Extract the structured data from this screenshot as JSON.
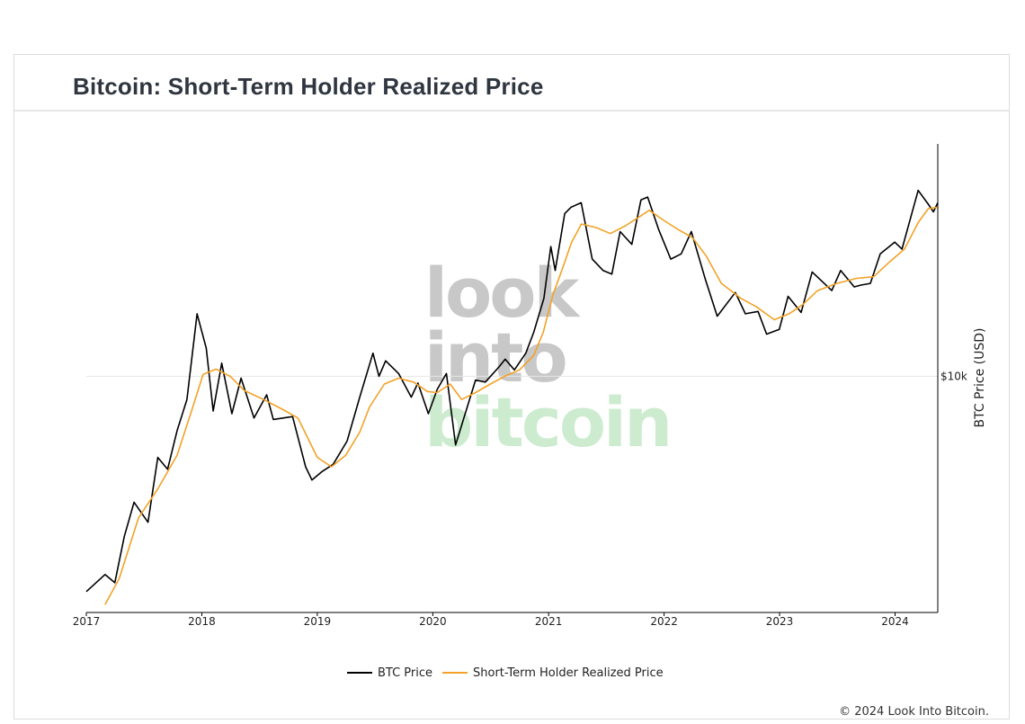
{
  "page": {
    "title": "Bitcoin: Short-Term Holder Realized Price",
    "copyright": "© 2024 Look Into Bitcoin."
  },
  "watermark": {
    "line1": "look",
    "line2": "into",
    "line3": "bitcoin",
    "gray": "#c8c8c8",
    "green": "#cdeccf"
  },
  "colors": {
    "btc": "#000000",
    "sth": "#f2a227",
    "grid": "#e6e6e6",
    "axis": "#000000"
  },
  "chart_data": {
    "type": "line",
    "title": "Bitcoin: Short-Term Holder Realized Price",
    "xlabel": "",
    "ylabel": "BTC Price (USD)",
    "y_scale": "log",
    "y_axis_side": "right",
    "y_ticks": [
      {
        "value": 10000,
        "label": "$10k"
      }
    ],
    "x_ticks": [
      "2017",
      "2018",
      "2019",
      "2020",
      "2021",
      "2022",
      "2023",
      "2024"
    ],
    "x_range": [
      "2017-01-01",
      "2024-05-15"
    ],
    "grid": "horizontal at $10k",
    "legend_position": "bottom-center",
    "series": [
      {
        "name": "BTC Price",
        "color": "#000000",
        "points": [
          [
            "2017-01-01",
            1000
          ],
          [
            "2017-03-01",
            1200
          ],
          [
            "2017-04-01",
            1100
          ],
          [
            "2017-05-01",
            1800
          ],
          [
            "2017-06-01",
            2600
          ],
          [
            "2017-07-15",
            2100
          ],
          [
            "2017-08-15",
            4200
          ],
          [
            "2017-09-15",
            3700
          ],
          [
            "2017-10-15",
            5600
          ],
          [
            "2017-11-15",
            7800
          ],
          [
            "2017-12-17",
            19500
          ],
          [
            "2018-01-15",
            13500
          ],
          [
            "2018-02-06",
            6900
          ],
          [
            "2018-03-05",
            11500
          ],
          [
            "2018-04-06",
            6700
          ],
          [
            "2018-05-05",
            9800
          ],
          [
            "2018-06-15",
            6400
          ],
          [
            "2018-07-25",
            8200
          ],
          [
            "2018-08-15",
            6300
          ],
          [
            "2018-10-15",
            6500
          ],
          [
            "2018-11-25",
            3800
          ],
          [
            "2018-12-15",
            3300
          ],
          [
            "2019-01-15",
            3600
          ],
          [
            "2019-02-20",
            3900
          ],
          [
            "2019-04-05",
            5000
          ],
          [
            "2019-05-15",
            8000
          ],
          [
            "2019-06-26",
            12800
          ],
          [
            "2019-07-15",
            10000
          ],
          [
            "2019-08-05",
            11800
          ],
          [
            "2019-09-15",
            10300
          ],
          [
            "2019-10-25",
            8000
          ],
          [
            "2019-11-15",
            9300
          ],
          [
            "2019-12-18",
            6700
          ],
          [
            "2020-01-15",
            8700
          ],
          [
            "2020-02-13",
            10300
          ],
          [
            "2020-03-13",
            4800
          ],
          [
            "2020-04-15",
            6900
          ],
          [
            "2020-05-15",
            9600
          ],
          [
            "2020-06-15",
            9400
          ],
          [
            "2020-07-27",
            11000
          ],
          [
            "2020-08-17",
            12000
          ],
          [
            "2020-09-15",
            10700
          ],
          [
            "2020-10-21",
            12800
          ],
          [
            "2020-11-15",
            16000
          ],
          [
            "2020-12-17",
            23000
          ],
          [
            "2021-01-08",
            40000
          ],
          [
            "2021-01-22",
            31000
          ],
          [
            "2021-02-21",
            57000
          ],
          [
            "2021-03-13",
            61000
          ],
          [
            "2021-04-14",
            64000
          ],
          [
            "2021-05-19",
            35000
          ],
          [
            "2021-06-22",
            31000
          ],
          [
            "2021-07-20",
            29800
          ],
          [
            "2021-08-15",
            47000
          ],
          [
            "2021-09-21",
            41000
          ],
          [
            "2021-10-20",
            66000
          ],
          [
            "2021-11-10",
            68000
          ],
          [
            "2021-12-15",
            48000
          ],
          [
            "2022-01-22",
            35000
          ],
          [
            "2022-02-24",
            37000
          ],
          [
            "2022-03-28",
            47000
          ],
          [
            "2022-05-12",
            28000
          ],
          [
            "2022-06-18",
            19000
          ],
          [
            "2022-08-14",
            24500
          ],
          [
            "2022-09-15",
            19500
          ],
          [
            "2022-10-25",
            20000
          ],
          [
            "2022-11-21",
            15700
          ],
          [
            "2022-12-31",
            16500
          ],
          [
            "2023-01-28",
            23500
          ],
          [
            "2023-03-10",
            19800
          ],
          [
            "2023-04-14",
            30500
          ],
          [
            "2023-06-15",
            25000
          ],
          [
            "2023-07-13",
            31000
          ],
          [
            "2023-08-25",
            26000
          ],
          [
            "2023-09-15",
            26500
          ],
          [
            "2023-10-15",
            27000
          ],
          [
            "2023-11-15",
            37000
          ],
          [
            "2023-12-31",
            42000
          ],
          [
            "2024-01-23",
            39000
          ],
          [
            "2024-03-14",
            73000
          ],
          [
            "2024-04-15",
            63000
          ],
          [
            "2024-05-01",
            58000
          ],
          [
            "2024-05-15",
            64000
          ]
        ]
      },
      {
        "name": "Short-Term Holder Realized Price",
        "color": "#f2a227",
        "points": [
          [
            "2017-03-01",
            870
          ],
          [
            "2017-04-15",
            1150
          ],
          [
            "2017-06-15",
            2200
          ],
          [
            "2017-08-15",
            3000
          ],
          [
            "2017-10-15",
            4300
          ],
          [
            "2017-12-01",
            7000
          ],
          [
            "2018-01-05",
            10200
          ],
          [
            "2018-02-15",
            10800
          ],
          [
            "2018-04-01",
            10000
          ],
          [
            "2018-05-15",
            8600
          ],
          [
            "2018-07-15",
            7800
          ],
          [
            "2018-09-15",
            7000
          ],
          [
            "2018-11-01",
            6400
          ],
          [
            "2018-12-01",
            5200
          ],
          [
            "2019-01-01",
            4200
          ],
          [
            "2019-02-15",
            3800
          ],
          [
            "2019-04-01",
            4300
          ],
          [
            "2019-05-15",
            5500
          ],
          [
            "2019-06-15",
            7200
          ],
          [
            "2019-08-01",
            9200
          ],
          [
            "2019-09-15",
            9800
          ],
          [
            "2019-11-01",
            9400
          ],
          [
            "2019-12-15",
            8500
          ],
          [
            "2020-01-15",
            8400
          ],
          [
            "2020-02-25",
            9200
          ],
          [
            "2020-04-01",
            7800
          ],
          [
            "2020-05-15",
            8400
          ],
          [
            "2020-07-01",
            9200
          ],
          [
            "2020-08-15",
            10000
          ],
          [
            "2020-10-01",
            10700
          ],
          [
            "2020-11-15",
            12500
          ],
          [
            "2020-12-15",
            16000
          ],
          [
            "2021-01-15",
            24000
          ],
          [
            "2021-02-15",
            32000
          ],
          [
            "2021-03-15",
            42000
          ],
          [
            "2021-04-15",
            51000
          ],
          [
            "2021-06-01",
            49000
          ],
          [
            "2021-07-15",
            46000
          ],
          [
            "2021-09-01",
            50000
          ],
          [
            "2021-10-15",
            55000
          ],
          [
            "2021-11-15",
            59000
          ],
          [
            "2021-12-31",
            53000
          ],
          [
            "2022-02-15",
            48000
          ],
          [
            "2022-04-01",
            44000
          ],
          [
            "2022-05-15",
            36000
          ],
          [
            "2022-07-01",
            27000
          ],
          [
            "2022-09-01",
            23000
          ],
          [
            "2022-10-20",
            21000
          ],
          [
            "2022-12-15",
            18300
          ],
          [
            "2023-01-31",
            19500
          ],
          [
            "2023-03-15",
            21500
          ],
          [
            "2023-05-01",
            25000
          ],
          [
            "2023-07-01",
            27000
          ],
          [
            "2023-09-01",
            28500
          ],
          [
            "2023-10-25",
            29000
          ],
          [
            "2023-12-15",
            34000
          ],
          [
            "2024-01-31",
            39000
          ],
          [
            "2024-03-15",
            52000
          ],
          [
            "2024-04-15",
            60000
          ],
          [
            "2024-05-15",
            61000
          ]
        ]
      }
    ]
  }
}
